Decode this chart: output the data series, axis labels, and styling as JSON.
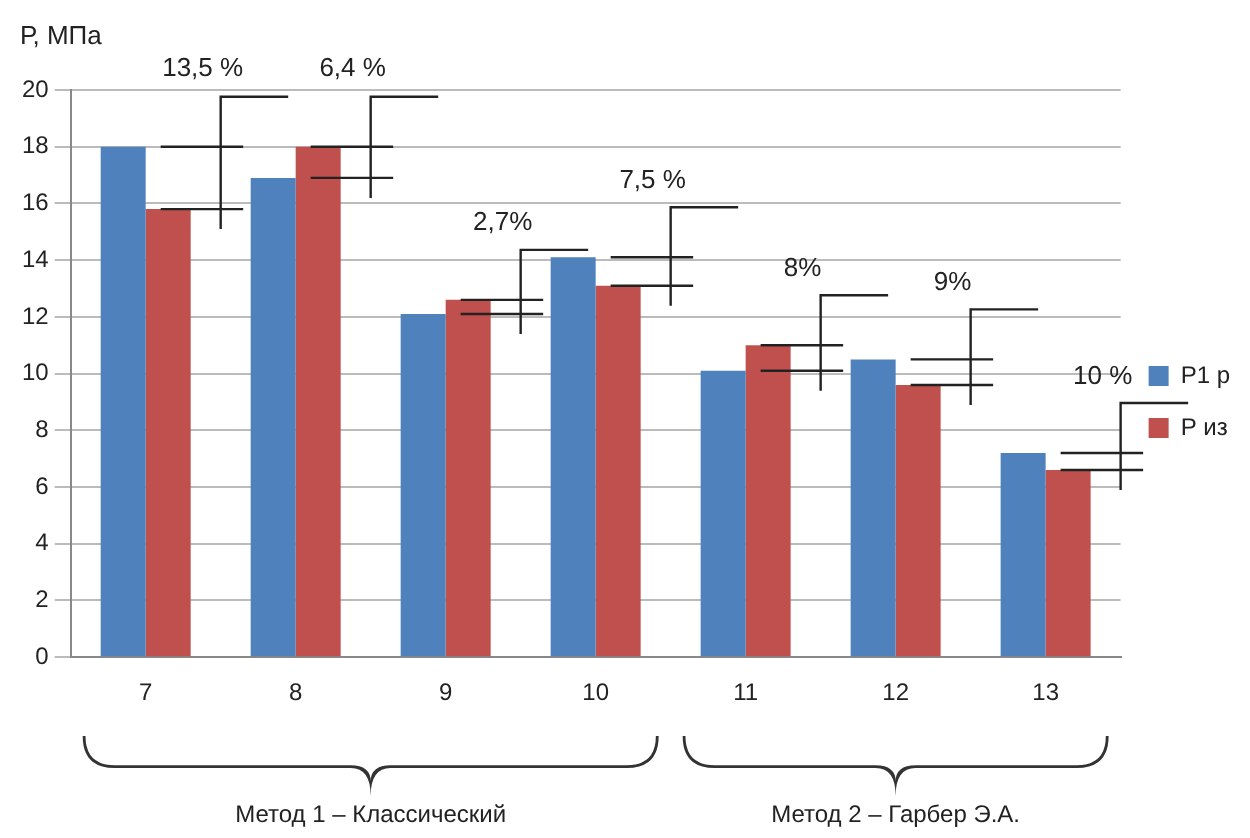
{
  "chart_data": {
    "type": "bar",
    "ylabel": "Р, МПа",
    "categories": [
      "7",
      "8",
      "9",
      "10",
      "11",
      "12",
      "13"
    ],
    "series": [
      {
        "name": "Р1 р",
        "color": "#4f81bd",
        "values": [
          18,
          16.9,
          12.1,
          14.1,
          10.1,
          10.5,
          7.2
        ]
      },
      {
        "name": "Р из",
        "color": "#c0504d",
        "values": [
          15.8,
          18,
          12.6,
          13.1,
          11,
          9.6,
          6.6
        ]
      }
    ],
    "ylim": [
      0,
      20
    ],
    "yticks": [
      0,
      2,
      4,
      6,
      8,
      10,
      12,
      14,
      16,
      18,
      20
    ],
    "grid": "y",
    "legend": "right",
    "annotations": [
      "13,5 %",
      "6,4 %",
      "2,7%",
      "7,5 %",
      "8%",
      "9%",
      "10 %",
      "Метод 1 – Классический",
      "Метод 2 – Гарбер Э.А."
    ]
  }
}
